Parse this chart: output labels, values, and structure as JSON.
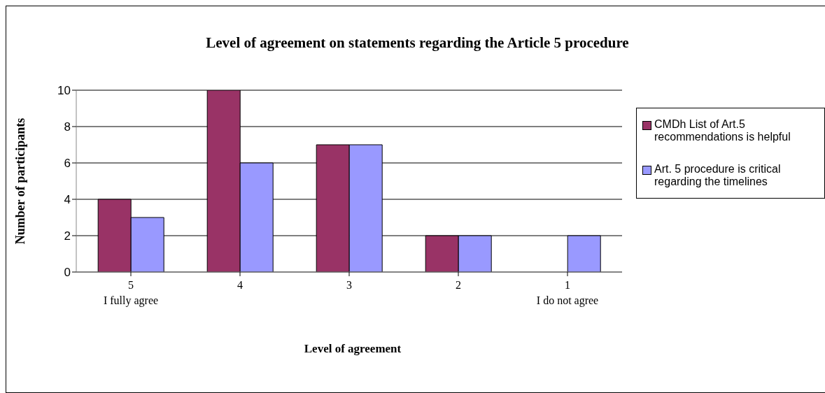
{
  "chart_data": {
    "type": "bar",
    "title": "Level of agreement on statements regarding the Article 5 procedure",
    "xlabel": "Level of agreement",
    "ylabel": "Number of participants",
    "categories": [
      "5\nI fully agree",
      "4",
      "3",
      "2",
      "1\nI do not agree"
    ],
    "series": [
      {
        "name": "CMDh List of Art.5 recommendations is helpful",
        "color": "#993366",
        "values": [
          4,
          10,
          7,
          2,
          0
        ]
      },
      {
        "name": "Art. 5 procedure is critical regarding the timelines",
        "color": "#9999ff",
        "values": [
          3,
          6,
          7,
          2,
          2
        ]
      }
    ],
    "ylim": [
      0,
      10
    ],
    "yticks": [
      0,
      2,
      4,
      6,
      8,
      10
    ],
    "grid": "y",
    "legend": "right"
  }
}
